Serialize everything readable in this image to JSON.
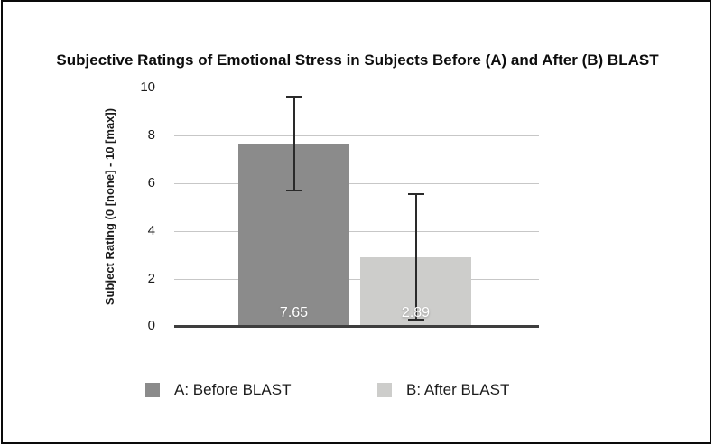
{
  "page": {
    "background_color": "#ffffff",
    "frame_border_color": "#0a0a0a"
  },
  "chart_data": {
    "type": "bar",
    "title": "Subjective Ratings of Emotional Stress in Subjects Before (A) and After (B) BLAST",
    "xlabel": "",
    "ylabel": "Subject Rating (0 [none] - 10 [max])",
    "ylim": [
      0,
      10
    ],
    "yticks": [
      10,
      8,
      6,
      4,
      2,
      0
    ],
    "grid": true,
    "legend_position": "bottom",
    "categories": [
      "A: Before BLAST",
      "B: After BLAST"
    ],
    "series": [
      {
        "name": "Subject Rating",
        "values": [
          7.65,
          2.89
        ]
      }
    ],
    "values": [
      7.65,
      2.89
    ],
    "value_labels": [
      "7.65",
      "2.89"
    ],
    "error_bars": [
      {
        "low": 5.65,
        "high": 9.65
      },
      {
        "low": 0.23,
        "high": 5.57
      }
    ],
    "bar_colors": [
      "#8b8b8b",
      "#cdcdcb"
    ],
    "gridline_color": "#c7c7c7",
    "axis_color": "#3e3e3e",
    "legend": [
      {
        "label": "A: Before BLAST",
        "color": "#8b8b8b"
      },
      {
        "label": "B: After BLAST",
        "color": "#cdcdcb"
      }
    ]
  }
}
